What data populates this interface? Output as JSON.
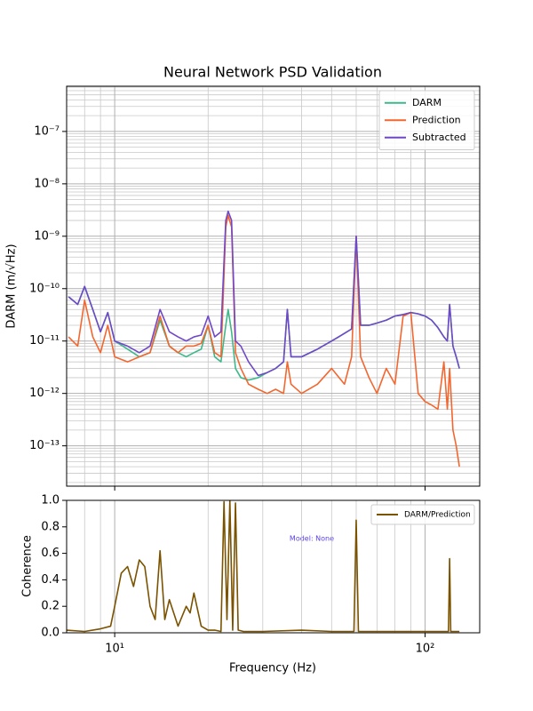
{
  "chart_data": [
    {
      "type": "line",
      "title": "Neural Network PSD Validation",
      "ylabel": "DARM (m/√Hz)",
      "xscale": "log",
      "yscale": "log",
      "grid": true,
      "minor_grid": true,
      "legend": "upper right",
      "xlim": [
        7,
        150
      ],
      "ylim": [
        1.7e-14,
        7.3e-07
      ],
      "xticks": [
        10,
        100
      ],
      "yticks": [
        {
          "value": 1e-13,
          "label": "10⁻¹³"
        },
        {
          "value": 1e-12,
          "label": "10⁻¹²"
        },
        {
          "value": 1e-11,
          "label": "10⁻¹¹"
        },
        {
          "value": 1e-10,
          "label": "10⁻¹⁰"
        },
        {
          "value": 1e-09,
          "label": "10⁻⁹"
        },
        {
          "value": 1e-08,
          "label": "10⁻⁸"
        },
        {
          "value": 1e-07,
          "label": "10⁻⁷"
        }
      ],
      "x": [
        7.1,
        7.6,
        8.0,
        8.5,
        9.0,
        9.5,
        10,
        11,
        12,
        13,
        14,
        15,
        16,
        17,
        18,
        19,
        20,
        21,
        22,
        22.8,
        23.2,
        23.8,
        24.5,
        25.5,
        27,
        29,
        31,
        33,
        35,
        36,
        37,
        40,
        45,
        50,
        55,
        58,
        60,
        62,
        66,
        70,
        75,
        80,
        85,
        90,
        95,
        100,
        105,
        110,
        115,
        118,
        120,
        123,
        126,
        129
      ],
      "series": [
        {
          "name": "DARM",
          "color": "#3db88a",
          "values": [
            7e-11,
            5e-11,
            1.1e-10,
            4e-11,
            1.5e-11,
            3.5e-11,
            1e-11,
            7e-12,
            5e-12,
            6e-12,
            2.5e-11,
            8e-12,
            6e-12,
            5e-12,
            6e-12,
            7e-12,
            2e-11,
            5e-12,
            4e-12,
            2e-11,
            4e-11,
            1.5e-11,
            3e-12,
            2e-12,
            1.8e-12,
            2e-12,
            2.5e-12,
            3e-12,
            4e-12,
            4e-11,
            5e-12,
            5e-12,
            7e-12,
            1e-11,
            1.4e-11,
            1.7e-11,
            1e-09,
            2e-11,
            2e-11,
            2.2e-11,
            2.5e-11,
            3e-11,
            3.2e-11,
            3.5e-11,
            3.3e-11,
            3e-11,
            2.5e-11,
            1.8e-11,
            1.2e-11,
            1e-11,
            5e-11,
            8e-12,
            5e-12,
            3e-12
          ]
        },
        {
          "name": "Prediction",
          "color": "#f4662e",
          "values": [
            1.2e-11,
            8e-12,
            6e-11,
            1.2e-11,
            6e-12,
            2e-11,
            5e-12,
            4e-12,
            5e-12,
            6e-12,
            3e-11,
            8e-12,
            6e-12,
            8e-12,
            8e-12,
            9e-12,
            2e-11,
            6e-12,
            5e-12,
            1.5e-09,
            2.5e-09,
            1.5e-09,
            6e-12,
            3e-12,
            1.5e-12,
            1.2e-12,
            1e-12,
            1.2e-12,
            1e-12,
            4e-12,
            1.5e-12,
            1e-12,
            1.5e-12,
            3e-12,
            1.5e-12,
            5e-12,
            1e-09,
            5e-12,
            2e-12,
            1e-12,
            3e-12,
            1.5e-12,
            3e-11,
            3.5e-11,
            1e-12,
            7e-13,
            6e-13,
            5e-13,
            4e-12,
            5e-13,
            3e-12,
            2e-13,
            1e-13,
            4e-14
          ]
        },
        {
          "name": "Subtracted",
          "color": "#6f48c8",
          "values": [
            7e-11,
            5e-11,
            1.1e-10,
            4e-11,
            1.5e-11,
            3.5e-11,
            1e-11,
            8e-12,
            6e-12,
            8e-12,
            4e-11,
            1.5e-11,
            1.2e-11,
            1e-11,
            1.2e-11,
            1.3e-11,
            3e-11,
            1.2e-11,
            1.5e-11,
            2e-09,
            3e-09,
            2e-09,
            1e-11,
            8e-12,
            4e-12,
            2.2e-12,
            2.5e-12,
            3e-12,
            4e-12,
            4e-11,
            5e-12,
            5e-12,
            7e-12,
            1e-11,
            1.4e-11,
            1.7e-11,
            1e-09,
            2e-11,
            2e-11,
            2.2e-11,
            2.5e-11,
            3e-11,
            3.2e-11,
            3.5e-11,
            3.3e-11,
            3e-11,
            2.5e-11,
            1.8e-11,
            1.2e-11,
            1e-11,
            5e-11,
            8e-12,
            5e-12,
            3e-12
          ]
        }
      ]
    },
    {
      "type": "line",
      "ylabel": "Coherence",
      "xlabel": "Frequency (Hz)",
      "annotation": "Model: None",
      "xscale": "log",
      "grid": true,
      "minor_grid": true,
      "legend": "upper right",
      "xlim": [
        7,
        150
      ],
      "ylim": [
        0,
        1
      ],
      "xticks": [
        {
          "value": 10,
          "label": "10¹"
        },
        {
          "value": 100,
          "label": "10²"
        }
      ],
      "yticks": [
        {
          "value": 0,
          "label": "0.0"
        },
        0.2,
        0.4,
        0.6,
        0.8,
        {
          "value": 1,
          "label": "1.0"
        }
      ],
      "x": [
        7.0,
        8,
        9,
        9.7,
        10,
        10.5,
        11,
        11.5,
        12,
        12.5,
        13,
        13.5,
        14,
        14.5,
        15,
        16,
        17,
        17.5,
        18,
        19,
        20,
        21,
        22,
        22.5,
        23,
        23.5,
        24,
        24.5,
        25,
        26,
        30,
        40,
        50,
        58,
        59,
        60,
        61,
        70,
        100,
        118,
        119,
        120,
        121,
        125,
        129
      ],
      "series": [
        {
          "name": "DARM/Prediction",
          "color": "#7a5200",
          "values": [
            0.02,
            0.01,
            0.03,
            0.05,
            0.2,
            0.45,
            0.5,
            0.35,
            0.55,
            0.5,
            0.2,
            0.1,
            0.62,
            0.1,
            0.25,
            0.05,
            0.2,
            0.15,
            0.3,
            0.05,
            0.02,
            0.02,
            0.01,
            0.99,
            0.1,
            1.0,
            0.02,
            0.98,
            0.02,
            0.01,
            0.01,
            0.02,
            0.01,
            0.01,
            0.01,
            0.85,
            0.01,
            0.01,
            0.01,
            0.01,
            0.01,
            0.56,
            0.01,
            0.01,
            0.01
          ]
        }
      ]
    }
  ]
}
